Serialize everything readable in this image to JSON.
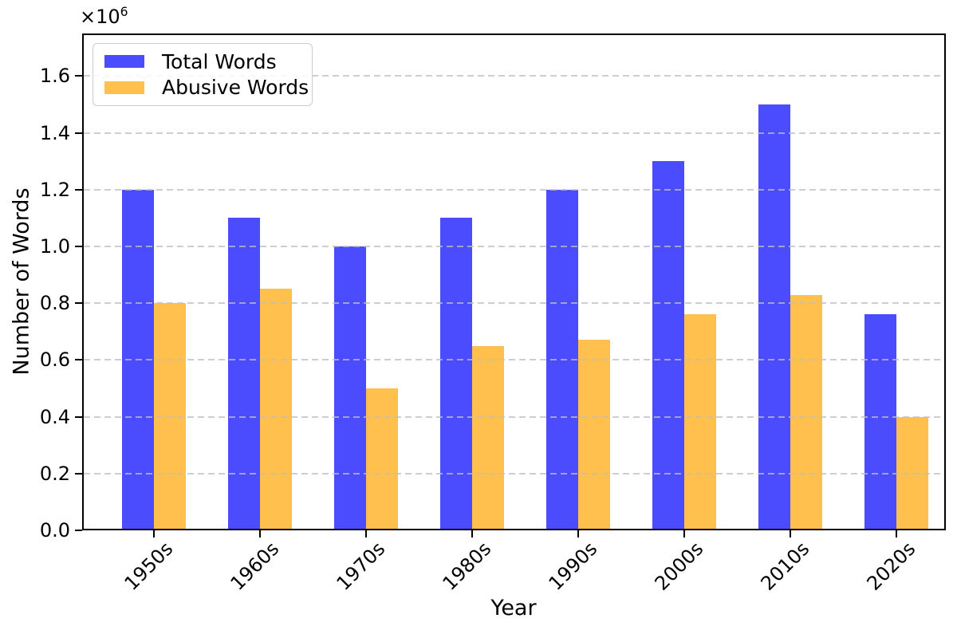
{
  "figure": {
    "ylabel": "Number of Words",
    "xlabel": "Year",
    "offset_text_base": "×10",
    "offset_text_exponent": "6"
  },
  "legend": {
    "position": "upper left",
    "items": [
      {
        "label": "Total Words",
        "color": "#4C4CFF"
      },
      {
        "label": "Abusive Words",
        "color": "#FFC04D"
      }
    ]
  },
  "chart_data": {
    "type": "bar",
    "title": "",
    "xlabel": "Year",
    "ylabel": "Number of Words",
    "categories": [
      "1950s",
      "1960s",
      "1970s",
      "1980s",
      "1990s",
      "2000s",
      "2010s",
      "2020s"
    ],
    "series": [
      {
        "name": "Total Words",
        "color": "#4C4CFF",
        "values": [
          1200000,
          1100000,
          1000000,
          1100000,
          1200000,
          1300000,
          1500000,
          760000
        ]
      },
      {
        "name": "Abusive Words",
        "color": "#FFC04D",
        "values": [
          800000,
          850000,
          500000,
          650000,
          670000,
          760000,
          830000,
          400000
        ]
      }
    ],
    "ylim": [
      0,
      1750000
    ],
    "yticks": [
      0,
      200000,
      400000,
      600000,
      800000,
      1000000,
      1200000,
      1400000,
      1600000
    ],
    "ytick_labels": [
      "0.0",
      "0.2",
      "0.4",
      "0.6",
      "0.8",
      "1.0",
      "1.2",
      "1.4",
      "1.6"
    ],
    "y_scale_label": "×10⁶",
    "xtick_rotation_deg": 45,
    "grid": "horizontal dashed, drawn above bars",
    "grid_color": "#bebebe",
    "legend_position": "upper left",
    "background_color": "#ffffff"
  }
}
